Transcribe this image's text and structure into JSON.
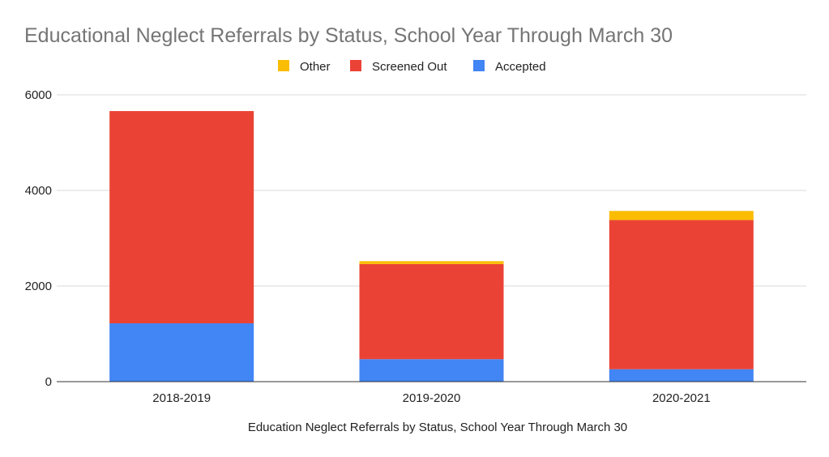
{
  "chart_data": {
    "type": "bar",
    "stacked": true,
    "title": "Educational Neglect Referrals by Status, School Year Through March 30",
    "xlabel": "Education Neglect Referrals by Status, School Year Through March 30",
    "ylabel": "",
    "categories": [
      "2018-2019",
      "2019-2020",
      "2020-2021"
    ],
    "series": [
      {
        "name": "Accepted",
        "color": "#4285f4",
        "values": [
          1220,
          470,
          260
        ]
      },
      {
        "name": "Screened Out",
        "color": "#ea4335",
        "values": [
          4440,
          1990,
          3120
        ]
      },
      {
        "name": "Other",
        "color": "#fbbc04",
        "values": [
          0,
          60,
          190
        ]
      }
    ],
    "legend_order": [
      "Other",
      "Screened Out",
      "Accepted"
    ],
    "legend_position": "top",
    "ylim": [
      0,
      6000
    ],
    "yticks": [
      0,
      2000,
      4000,
      6000
    ],
    "grid": true
  }
}
